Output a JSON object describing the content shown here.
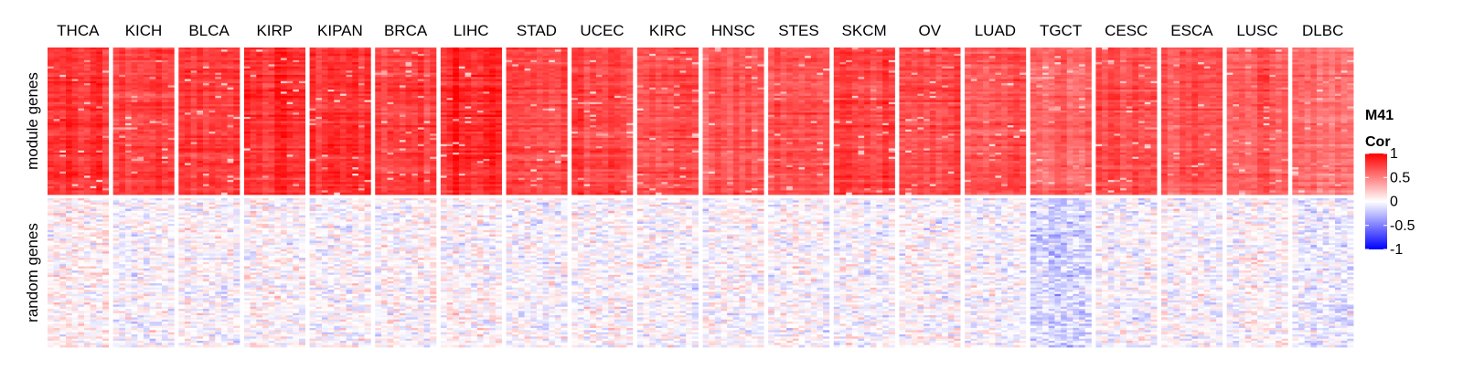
{
  "chart_data": {
    "type": "heatmap",
    "columns": [
      "THCA",
      "KICH",
      "BLCA",
      "KIRP",
      "KIPAN",
      "BRCA",
      "LIHC",
      "STAD",
      "UCEC",
      "KIRC",
      "HNSC",
      "STES",
      "SKCM",
      "OV",
      "LUAD",
      "TGCT",
      "CESC",
      "ESCA",
      "LUSC",
      "DLBC"
    ],
    "row_groups": [
      {
        "label": "module genes",
        "approx_mean_cor": [
          0.8,
          0.75,
          0.8,
          0.82,
          0.8,
          0.75,
          0.85,
          0.72,
          0.72,
          0.72,
          0.65,
          0.7,
          0.75,
          0.72,
          0.68,
          0.6,
          0.7,
          0.68,
          0.65,
          0.55
        ]
      },
      {
        "label": "random genes",
        "approx_mean_cor": [
          0.05,
          0.0,
          0.0,
          0.02,
          0.0,
          0.02,
          0.02,
          0.0,
          0.0,
          0.0,
          0.0,
          0.0,
          0.0,
          0.0,
          0.0,
          -0.15,
          0.0,
          0.0,
          0.0,
          -0.05
        ]
      }
    ],
    "legend": {
      "title_line1": "M41",
      "title_line2": "Cor",
      "ticks": [
        "1",
        "0.5",
        "0",
        "-0.5",
        "-1"
      ],
      "tick_values": [
        1,
        0.5,
        0,
        -0.5,
        -1
      ],
      "colors": {
        "high": "#ff0000",
        "mid": "#ffffff",
        "low": "#0000ff"
      }
    },
    "value_range": [
      -1,
      1
    ]
  }
}
